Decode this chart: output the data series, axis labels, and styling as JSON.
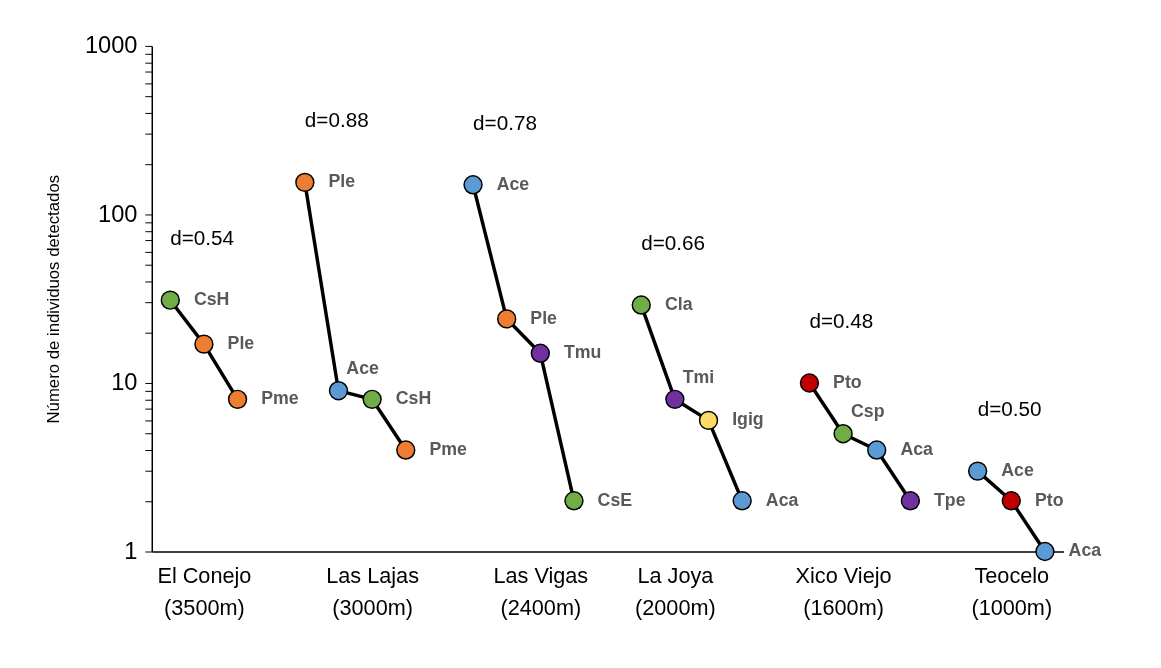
{
  "chart_data": {
    "type": "line",
    "ylabel": "Número de individuos detectados",
    "log": "y",
    "ylim": [
      1,
      1000
    ],
    "yticks": [
      1,
      {
        "value": 2,
        "label": null
      },
      {
        "value": 3,
        "label": null
      },
      {
        "value": 4,
        "label": null
      },
      {
        "value": 5,
        "label": null
      },
      {
        "value": 6,
        "label": null
      },
      {
        "value": 7,
        "label": null
      },
      {
        "value": 8,
        "label": null
      },
      {
        "value": 9,
        "label": null
      },
      10,
      {
        "value": 20,
        "label": null
      },
      {
        "value": 30,
        "label": null
      },
      {
        "value": 40,
        "label": null
      },
      {
        "value": 50,
        "label": null
      },
      {
        "value": 60,
        "label": null
      },
      {
        "value": 70,
        "label": null
      },
      {
        "value": 80,
        "label": null
      },
      {
        "value": 90,
        "label": null
      },
      100,
      {
        "value": 200,
        "label": null
      },
      {
        "value": 300,
        "label": null
      },
      {
        "value": 400,
        "label": null
      },
      {
        "value": 500,
        "label": null
      },
      {
        "value": 600,
        "label": null
      },
      {
        "value": 700,
        "label": null
      },
      {
        "value": 800,
        "label": null
      },
      {
        "value": 900,
        "label": null
      },
      1000
    ],
    "categories": [
      null,
      "El Conejo\n(3500m)",
      null,
      null,
      null,
      null,
      "Las Lajas\n(3000m)",
      null,
      null,
      null,
      null,
      "Las Vigas\n(2400m)",
      null,
      null,
      null,
      "La Joya\n(2000m)",
      null,
      null,
      null,
      null,
      "Xico Viejo\n(1600m)",
      null,
      null,
      null,
      null,
      "Teocelo\n(1000m)",
      null
    ],
    "grid": false,
    "marker": "circle",
    "line_style": "solid",
    "series": [
      {
        "name": "d=0.54",
        "color": "#000000",
        "values": [
          31,
          17,
          8,
          null,
          null,
          null,
          null,
          null,
          null,
          null,
          null,
          null,
          null,
          null,
          null,
          null,
          null,
          null,
          null,
          null,
          null,
          null,
          null,
          null,
          null,
          null,
          null
        ],
        "colors": [
          "#70ad47",
          "#ed7d31",
          "#ed7d31",
          null,
          null,
          null,
          null,
          null,
          null,
          null,
          null,
          null,
          null,
          null,
          null,
          null,
          null,
          null,
          null,
          null,
          null,
          null,
          null,
          null,
          null,
          null,
          null
        ],
        "value_labels": [
          "CsH",
          "Ple",
          "Pme",
          null,
          null,
          null,
          null,
          null,
          null,
          null,
          null,
          null,
          null,
          null,
          null,
          null,
          null,
          null,
          null,
          null,
          null,
          null,
          null,
          null,
          null,
          null,
          null
        ]
      },
      {
        "name": "d=0.88",
        "color": "#000000",
        "values": [
          null,
          null,
          null,
          null,
          155,
          9,
          8,
          4,
          null,
          null,
          null,
          null,
          null,
          null,
          null,
          null,
          null,
          null,
          null,
          null,
          null,
          null,
          null,
          null,
          null,
          null,
          null
        ],
        "colors": [
          null,
          null,
          null,
          null,
          "#ed7d31",
          "#5b9bd5",
          "#70ad47",
          "#ed7d31",
          null,
          null,
          null,
          null,
          null,
          null,
          null,
          null,
          null,
          null,
          null,
          null,
          null,
          null,
          null,
          null,
          null,
          null,
          null
        ],
        "value_labels": [
          null,
          null,
          null,
          null,
          "Ple",
          "Ace",
          "CsH",
          "Pme",
          null,
          null,
          null,
          null,
          null,
          null,
          null,
          null,
          null,
          null,
          null,
          null,
          null,
          null,
          null,
          null,
          null,
          null,
          null
        ]
      },
      {
        "name": "d=0.78",
        "color": "#000000",
        "values": [
          null,
          null,
          null,
          null,
          null,
          null,
          null,
          null,
          null,
          150,
          24,
          15,
          2,
          null,
          null,
          null,
          null,
          null,
          null,
          null,
          null,
          null,
          null,
          null,
          null,
          null,
          null
        ],
        "colors": [
          null,
          null,
          null,
          null,
          null,
          null,
          null,
          null,
          null,
          "#5b9bd5",
          "#ed7d31",
          "#7030a0",
          "#70ad47",
          null,
          null,
          null,
          null,
          null,
          null,
          null,
          null,
          null,
          null,
          null,
          null,
          null,
          null
        ],
        "value_labels": [
          null,
          null,
          null,
          null,
          null,
          null,
          null,
          null,
          null,
          "Ace",
          "Ple",
          "Tmu",
          "CsE",
          null,
          null,
          null,
          null,
          null,
          null,
          null,
          null,
          null,
          null,
          null,
          null,
          null,
          null
        ]
      },
      {
        "name": "d=0.66",
        "color": "#000000",
        "values": [
          null,
          null,
          null,
          null,
          null,
          null,
          null,
          null,
          null,
          null,
          null,
          null,
          null,
          null,
          29,
          8,
          6,
          2,
          null,
          null,
          null,
          null,
          null,
          null,
          null,
          null,
          null
        ],
        "colors": [
          null,
          null,
          null,
          null,
          null,
          null,
          null,
          null,
          null,
          null,
          null,
          null,
          null,
          null,
          "#70ad47",
          "#7030a0",
          "#ffd966",
          "#5b9bd5",
          null,
          null,
          null,
          null,
          null,
          null,
          null,
          null,
          null
        ],
        "value_labels": [
          null,
          null,
          null,
          null,
          null,
          null,
          null,
          null,
          null,
          null,
          null,
          null,
          null,
          null,
          "Cla",
          "Tmi",
          "Igig",
          "Aca",
          null,
          null,
          null,
          null,
          null,
          null,
          null,
          null,
          null
        ]
      },
      {
        "name": "d=0.48",
        "color": "#000000",
        "values": [
          null,
          null,
          null,
          null,
          null,
          null,
          null,
          null,
          null,
          null,
          null,
          null,
          null,
          null,
          null,
          null,
          null,
          null,
          null,
          10,
          5,
          4,
          2,
          null,
          null,
          null,
          null
        ],
        "colors": [
          null,
          null,
          null,
          null,
          null,
          null,
          null,
          null,
          null,
          null,
          null,
          null,
          null,
          null,
          null,
          null,
          null,
          null,
          null,
          "#c00000",
          "#70ad47",
          "#5b9bd5",
          "#7030a0",
          null,
          null,
          null,
          null
        ],
        "value_labels": [
          null,
          null,
          null,
          null,
          null,
          null,
          null,
          null,
          null,
          null,
          null,
          null,
          null,
          null,
          null,
          null,
          null,
          null,
          null,
          "Pto",
          "Csp",
          "Aca",
          "Tpe",
          null,
          null,
          null,
          null
        ]
      },
      {
        "name": "d=0.50",
        "color": "#000000",
        "values": [
          null,
          null,
          null,
          null,
          null,
          null,
          null,
          null,
          null,
          null,
          null,
          null,
          null,
          null,
          null,
          null,
          null,
          null,
          null,
          null,
          null,
          null,
          null,
          null,
          3,
          2,
          1
        ],
        "colors": [
          null,
          null,
          null,
          null,
          null,
          null,
          null,
          null,
          null,
          null,
          null,
          null,
          null,
          null,
          null,
          null,
          null,
          null,
          null,
          null,
          null,
          null,
          null,
          null,
          "#5b9bd5",
          "#c00000",
          "#5b9bd5"
        ],
        "value_labels": [
          null,
          null,
          null,
          null,
          null,
          null,
          null,
          null,
          null,
          null,
          null,
          null,
          null,
          null,
          null,
          null,
          null,
          null,
          null,
          null,
          null,
          null,
          null,
          null,
          "Ace",
          "Pto",
          "Aca"
        ]
      }
    ]
  }
}
